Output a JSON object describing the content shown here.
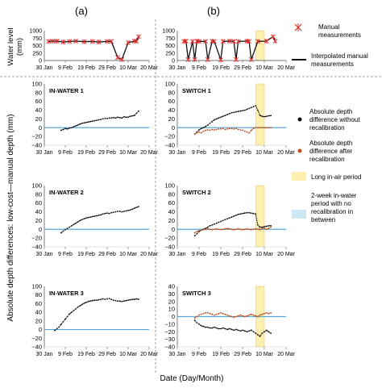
{
  "figure": {
    "col_a_label": "(a)",
    "col_b_label": "(b)",
    "top_ylabel_line1": "Water level",
    "top_ylabel_line2": "(mm)",
    "main_ylabel": "Absolute depth differences: low-cost—manual depth (mm)",
    "xlabel": "Date (Day/Month)",
    "x_ticks": [
      "30 Jan",
      "9 Feb",
      "19 Feb",
      "29 Feb",
      "10 Mar",
      "20 Mar"
    ],
    "top_y_ticks": [
      "1000",
      "750",
      "500",
      "250",
      "0"
    ],
    "main_y_ticks": [
      "100",
      "80",
      "60",
      "40",
      "20",
      "0",
      "−20",
      "−40"
    ]
  },
  "legend": {
    "manual_line1": "Manual",
    "manual_line2": "measurements",
    "interp_line1": "Interpolated manual",
    "interp_line2": "measurements",
    "without_line1": "Absolute depth",
    "without_line2": "difference without",
    "without_line3": "recalibration",
    "after_line1": "Absolute depth",
    "after_line2": "difference after",
    "after_line3": "recalibration",
    "longair": "Long in-air period",
    "week_line1": "2-week in-water",
    "week_line2": "period with no",
    "week_line3": "recalibration in",
    "week_line4": "between"
  },
  "colors": {
    "black_series": "#111111",
    "orange_series": "#c0501f",
    "baseline": "#5aa8d8",
    "manual_marker": "#e03030",
    "long_air": "#fcefb0",
    "long_air_edge": "#e8c850",
    "two_week": "#cfe6f5"
  },
  "chart_data": [
    {
      "type": "line",
      "panel": "top-a",
      "ylabel": "Water level (mm)",
      "xlim": [
        "30 Jan",
        "20 Mar"
      ],
      "ylim": [
        0,
        1000
      ],
      "series": [
        {
          "name": "Manual measurements",
          "style": "markers",
          "x": [
            2,
            4,
            6,
            9,
            12,
            15,
            19,
            23,
            26,
            30,
            32,
            35,
            37,
            40,
            43,
            44,
            45
          ],
          "values": [
            640,
            650,
            650,
            620,
            640,
            650,
            630,
            640,
            620,
            640,
            640,
            100,
            30,
            600,
            650,
            650,
            800
          ]
        },
        {
          "name": "Interpolated manual measurements",
          "style": "line",
          "x": [
            2,
            4,
            6,
            9,
            12,
            15,
            19,
            23,
            26,
            30,
            32,
            35,
            37,
            40,
            43,
            44,
            45
          ],
          "values": [
            640,
            650,
            650,
            620,
            640,
            650,
            630,
            640,
            620,
            640,
            640,
            100,
            30,
            600,
            650,
            650,
            800
          ]
        }
      ]
    },
    {
      "type": "line",
      "panel": "top-b",
      "xlim": [
        "30 Jan",
        "20 Mar"
      ],
      "ylim": [
        0,
        1000
      ],
      "series": [
        {
          "name": "Manual measurements",
          "style": "markers",
          "x": [
            3,
            4,
            5,
            7,
            8,
            9,
            10,
            13,
            14,
            16,
            17,
            20,
            21,
            24,
            26,
            27,
            28,
            32,
            33,
            34,
            37,
            41,
            44,
            45
          ],
          "values": [
            640,
            650,
            30,
            640,
            30,
            650,
            640,
            640,
            30,
            650,
            640,
            20,
            640,
            650,
            640,
            30,
            640,
            650,
            640,
            30,
            640,
            650,
            800,
            650
          ]
        },
        {
          "name": "Interpolated manual measurements",
          "style": "line",
          "x": [
            3,
            4,
            5,
            7,
            8,
            9,
            10,
            13,
            14,
            16,
            17,
            20,
            21,
            24,
            26,
            27,
            28,
            32,
            33,
            34,
            37,
            41,
            44,
            45
          ],
          "values": [
            640,
            650,
            30,
            640,
            30,
            650,
            640,
            640,
            30,
            650,
            640,
            20,
            640,
            650,
            640,
            30,
            640,
            650,
            640,
            30,
            640,
            650,
            800,
            650
          ]
        }
      ]
    },
    {
      "type": "scatter",
      "panel": "IN-WATER 1",
      "panel_label": "IN-WATER 1",
      "ylim": [
        -40,
        100
      ],
      "series": [
        {
          "name": "Absolute depth difference without recalibration",
          "x": [
            8,
            9,
            10,
            11,
            12,
            13,
            14,
            15,
            16,
            17,
            18,
            19,
            20,
            21,
            22,
            23,
            24,
            25,
            26,
            27,
            28,
            29,
            30,
            31,
            32,
            33,
            34,
            35,
            36,
            37,
            38,
            39,
            40,
            41,
            42,
            43,
            44,
            45
          ],
          "values": [
            -6,
            -4,
            -2,
            -3,
            -1,
            0,
            2,
            4,
            6,
            8,
            10,
            11,
            12,
            13,
            14,
            15,
            16,
            17,
            18,
            19,
            20,
            21,
            21,
            22,
            22,
            23,
            22,
            24,
            23,
            22,
            25,
            24,
            24,
            26,
            27,
            28,
            33,
            38
          ]
        }
      ]
    },
    {
      "type": "scatter",
      "panel": "IN-WATER 2",
      "panel_label": "IN-WATER 2",
      "ylim": [
        -40,
        100
      ],
      "series": [
        {
          "name": "Absolute depth difference without recalibration",
          "x": [
            8,
            9,
            10,
            11,
            12,
            13,
            14,
            15,
            16,
            17,
            18,
            19,
            20,
            21,
            22,
            23,
            24,
            25,
            26,
            27,
            28,
            29,
            30,
            31,
            32,
            33,
            34,
            35,
            36,
            37,
            38,
            39,
            40,
            41,
            42,
            43,
            44,
            45
          ],
          "values": [
            -8,
            -4,
            -1,
            2,
            5,
            8,
            11,
            14,
            17,
            20,
            22,
            24,
            26,
            27,
            28,
            29,
            30,
            31,
            32,
            33,
            35,
            36,
            37,
            36,
            38,
            39,
            40,
            41,
            41,
            40,
            41,
            42,
            43,
            44,
            46,
            48,
            50,
            52
          ]
        }
      ]
    },
    {
      "type": "scatter",
      "panel": "IN-WATER 3",
      "panel_label": "IN-WATER 3",
      "ylim": [
        -40,
        100
      ],
      "series": [
        {
          "name": "Absolute depth difference without recalibration",
          "x": [
            5,
            6,
            7,
            8,
            9,
            10,
            11,
            12,
            13,
            14,
            15,
            16,
            17,
            18,
            19,
            20,
            21,
            22,
            23,
            24,
            25,
            26,
            27,
            28,
            29,
            30,
            31,
            32,
            33,
            34,
            35,
            36,
            37,
            38,
            39,
            40,
            41,
            42,
            43,
            44,
            45
          ],
          "values": [
            -2,
            2,
            6,
            12,
            18,
            24,
            30,
            36,
            40,
            44,
            48,
            52,
            55,
            58,
            61,
            63,
            65,
            66,
            67,
            68,
            68,
            69,
            70,
            71,
            70,
            71,
            72,
            70,
            68,
            67,
            66,
            66,
            65,
            66,
            67,
            68,
            69,
            70,
            70,
            71,
            70
          ]
        }
      ]
    },
    {
      "type": "scatter",
      "panel": "SWITCH 1",
      "panel_label": "SWITCH 1",
      "ylim": [
        -40,
        100
      ],
      "series": [
        {
          "name": "Absolute depth difference without recalibration",
          "x": [
            8,
            9,
            10,
            11,
            12,
            13,
            14,
            15,
            16,
            17,
            18,
            19,
            20,
            21,
            22,
            23,
            24,
            25,
            26,
            27,
            28,
            29,
            30,
            31,
            32,
            33,
            34,
            35,
            36,
            37,
            38,
            39,
            40,
            41,
            42,
            43
          ],
          "values": [
            -15,
            -10,
            -5,
            -2,
            0,
            3,
            6,
            10,
            14,
            18,
            20,
            22,
            24,
            26,
            28,
            30,
            32,
            34,
            35,
            36,
            37,
            38,
            39,
            40,
            42,
            44,
            46,
            48,
            50,
            40,
            28,
            26,
            25,
            26,
            27,
            28
          ]
        },
        {
          "name": "Absolute depth difference after recalibration",
          "x": [
            8,
            9,
            10,
            11,
            12,
            13,
            14,
            15,
            16,
            17,
            18,
            19,
            20,
            21,
            22,
            23,
            24,
            25,
            26,
            27,
            28,
            29,
            30,
            31,
            32,
            33,
            34,
            35,
            36,
            37,
            38,
            39,
            40,
            41,
            42,
            43
          ],
          "values": [
            -15,
            -12,
            -10,
            -12,
            -8,
            -6,
            -5,
            -6,
            -4,
            -5,
            -4,
            -3,
            -3,
            -2,
            -4,
            -3,
            -2,
            -2,
            -3,
            -2,
            -4,
            -5,
            -6,
            -8,
            -10,
            -12,
            -6,
            -2,
            0,
            0,
            0,
            0,
            0,
            0,
            0,
            0
          ]
        }
      ]
    },
    {
      "type": "scatter",
      "panel": "SWITCH 2",
      "panel_label": "SWITCH 2",
      "ylim": [
        -40,
        100
      ],
      "series": [
        {
          "name": "Absolute depth difference without recalibration",
          "x": [
            8,
            9,
            10,
            11,
            12,
            13,
            14,
            15,
            16,
            17,
            18,
            19,
            20,
            21,
            22,
            23,
            24,
            25,
            26,
            27,
            28,
            29,
            30,
            31,
            32,
            33,
            34,
            35,
            36,
            37,
            38,
            39,
            40,
            41,
            42,
            43
          ],
          "values": [
            -15,
            -10,
            -5,
            -2,
            0,
            2,
            5,
            8,
            10,
            12,
            14,
            16,
            18,
            20,
            22,
            24,
            26,
            28,
            30,
            32,
            34,
            35,
            36,
            37,
            38,
            38,
            37,
            36,
            35,
            10,
            5,
            5,
            6,
            7,
            8,
            8
          ]
        },
        {
          "name": "Absolute depth difference after recalibration",
          "x": [
            8,
            9,
            10,
            11,
            12,
            13,
            14,
            15,
            16,
            17,
            18,
            19,
            20,
            21,
            22,
            23,
            24,
            25,
            26,
            27,
            28,
            29,
            30,
            31,
            32,
            33,
            34,
            35,
            36,
            37,
            38,
            39,
            40,
            41,
            42,
            43
          ],
          "values": [
            -8,
            -5,
            -3,
            -2,
            -1,
            0,
            1,
            0,
            -1,
            0,
            1,
            0,
            -1,
            0,
            1,
            2,
            1,
            0,
            -1,
            0,
            1,
            0,
            -1,
            0,
            1,
            0,
            -1,
            0,
            1,
            0,
            -1,
            2,
            3,
            0,
            2,
            5
          ]
        }
      ]
    },
    {
      "type": "scatter",
      "panel": "SWITCH 3",
      "panel_label": "SWITCH 3",
      "ylim": [
        -40,
        40
      ],
      "y_ticks": [
        40,
        30,
        20,
        10,
        0,
        -10,
        -20,
        -30,
        -40
      ],
      "series": [
        {
          "name": "Absolute depth difference without recalibration",
          "x": [
            8,
            9,
            10,
            11,
            12,
            13,
            14,
            15,
            16,
            17,
            18,
            19,
            20,
            21,
            22,
            23,
            24,
            25,
            26,
            27,
            28,
            29,
            30,
            31,
            32,
            33,
            34,
            35,
            36,
            37,
            38,
            39,
            40,
            41,
            42,
            43
          ],
          "values": [
            -5,
            -8,
            -10,
            -12,
            -13,
            -14,
            -14,
            -15,
            -15,
            -14,
            -15,
            -16,
            -16,
            -15,
            -16,
            -17,
            -16,
            -17,
            -18,
            -17,
            -18,
            -19,
            -18,
            -19,
            -20,
            -19,
            -18,
            -20,
            -22,
            -24,
            -26,
            -22,
            -20,
            -18,
            -20,
            -22
          ]
        },
        {
          "name": "Absolute depth difference after recalibration",
          "x": [
            8,
            9,
            10,
            11,
            12,
            13,
            14,
            15,
            16,
            17,
            18,
            19,
            20,
            21,
            22,
            23,
            24,
            25,
            26,
            27,
            28,
            29,
            30,
            31,
            32,
            33,
            34,
            35,
            36,
            37,
            38,
            39,
            40,
            41,
            42,
            43
          ],
          "values": [
            -2,
            0,
            2,
            3,
            4,
            5,
            5,
            4,
            3,
            2,
            3,
            4,
            5,
            4,
            3,
            2,
            1,
            0,
            -1,
            0,
            1,
            2,
            1,
            0,
            1,
            2,
            3,
            2,
            1,
            0,
            2,
            3,
            4,
            5,
            4,
            5
          ]
        }
      ]
    }
  ]
}
